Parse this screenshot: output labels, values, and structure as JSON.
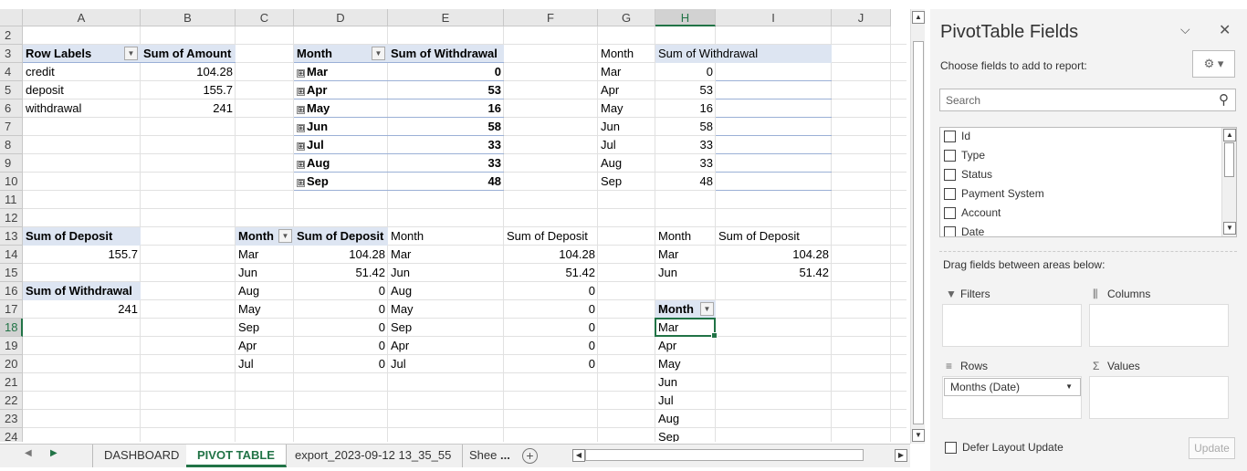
{
  "sheet": {
    "columns": [
      "A",
      "B",
      "C",
      "D",
      "E",
      "F",
      "G",
      "H",
      "I",
      "J"
    ],
    "selected_column": "H",
    "rows": [
      "2",
      "3",
      "4",
      "5",
      "6",
      "7",
      "8",
      "9",
      "10",
      "11",
      "12",
      "13",
      "14",
      "15",
      "16",
      "17",
      "18",
      "19",
      "20",
      "21",
      "22",
      "23",
      "24"
    ],
    "selected_row": "18"
  },
  "pivot1": {
    "header_labels": "Row Labels",
    "header_value": "Sum of Amount",
    "rows": [
      {
        "label": "credit",
        "value": "104.28"
      },
      {
        "label": "deposit",
        "value": "155.7"
      },
      {
        "label": "withdrawal",
        "value": "241"
      }
    ]
  },
  "pivot2": {
    "header_month": "Month",
    "header_value": "Sum of Withdrawal",
    "expand_glyph": "⊞",
    "rows": [
      {
        "month": "Mar",
        "value": "0"
      },
      {
        "month": "Apr",
        "value": "53"
      },
      {
        "month": "May",
        "value": "16"
      },
      {
        "month": "Jun",
        "value": "58"
      },
      {
        "month": "Jul",
        "value": "33"
      },
      {
        "month": "Aug",
        "value": "33"
      },
      {
        "month": "Sep",
        "value": "48"
      }
    ]
  },
  "table_g": {
    "header_month": "Month",
    "header_value": "Sum of Withdrawal",
    "rows": [
      {
        "month": "Mar",
        "value": "0"
      },
      {
        "month": "Apr",
        "value": "53"
      },
      {
        "month": "May",
        "value": "16"
      },
      {
        "month": "Jun",
        "value": "58"
      },
      {
        "month": "Jul",
        "value": "33"
      },
      {
        "month": "Aug",
        "value": "33"
      },
      {
        "month": "Sep",
        "value": "48"
      }
    ]
  },
  "pivot_deposit": {
    "header": "Sum of Deposit",
    "value": "155.7"
  },
  "pivot_withdrawal": {
    "header": "Sum of Withdrawal",
    "value": "241"
  },
  "pivot_c": {
    "header_month": "Month",
    "header_value": "Sum of Deposit",
    "rows": [
      {
        "month": "Mar",
        "value": "104.28"
      },
      {
        "month": "Jun",
        "value": "51.42"
      },
      {
        "month": "Aug",
        "value": "0"
      },
      {
        "month": "May",
        "value": "0"
      },
      {
        "month": "Sep",
        "value": "0"
      },
      {
        "month": "Apr",
        "value": "0"
      },
      {
        "month": "Jul",
        "value": "0"
      }
    ]
  },
  "table_d": {
    "header_month": "Month",
    "header_value": "Sum of Deposit",
    "rows": [
      {
        "month": "Mar",
        "value": "104.28"
      },
      {
        "month": "Jun",
        "value": "51.42"
      },
      {
        "month": "Aug",
        "value": "0"
      },
      {
        "month": "May",
        "value": "0"
      },
      {
        "month": "Sep",
        "value": "0"
      },
      {
        "month": "Apr",
        "value": "0"
      },
      {
        "month": "Jul",
        "value": "0"
      }
    ]
  },
  "table_h": {
    "header_month": "Month",
    "header_value": "Sum of Deposit",
    "rows": [
      {
        "month": "Mar",
        "value": "104.28"
      },
      {
        "month": "Jun",
        "value": "51.42"
      }
    ]
  },
  "pivot_month": {
    "header": "Month",
    "rows": [
      "Mar",
      "Apr",
      "May",
      "Jun",
      "Jul",
      "Aug",
      "Sep"
    ]
  },
  "tabs": [
    {
      "label": "DASHBOARD",
      "active": false
    },
    {
      "label": "PIVOT TABLE",
      "active": true
    },
    {
      "label": "export_2023-09-12 13_35_55",
      "active": false
    },
    {
      "label": "Shee",
      "active": false
    }
  ],
  "tab_ellipsis": "...",
  "pivot_pane": {
    "title": "PivotTable Fields",
    "subtitle": "Choose fields to add to report:",
    "search_placeholder": "Search",
    "fields": [
      "Id",
      "Type",
      "Status",
      "Payment System",
      "Account",
      "Date"
    ],
    "drag_text": "Drag fields between areas below:",
    "area_filters": "Filters",
    "area_columns": "Columns",
    "area_rows": "Rows",
    "area_values": "Values",
    "rows_field": "Months (Date)",
    "defer_label": "Defer Layout Update",
    "update_label": "Update"
  },
  "colors": {
    "accent": "#217346",
    "pivot_header": "#dde5f2"
  }
}
